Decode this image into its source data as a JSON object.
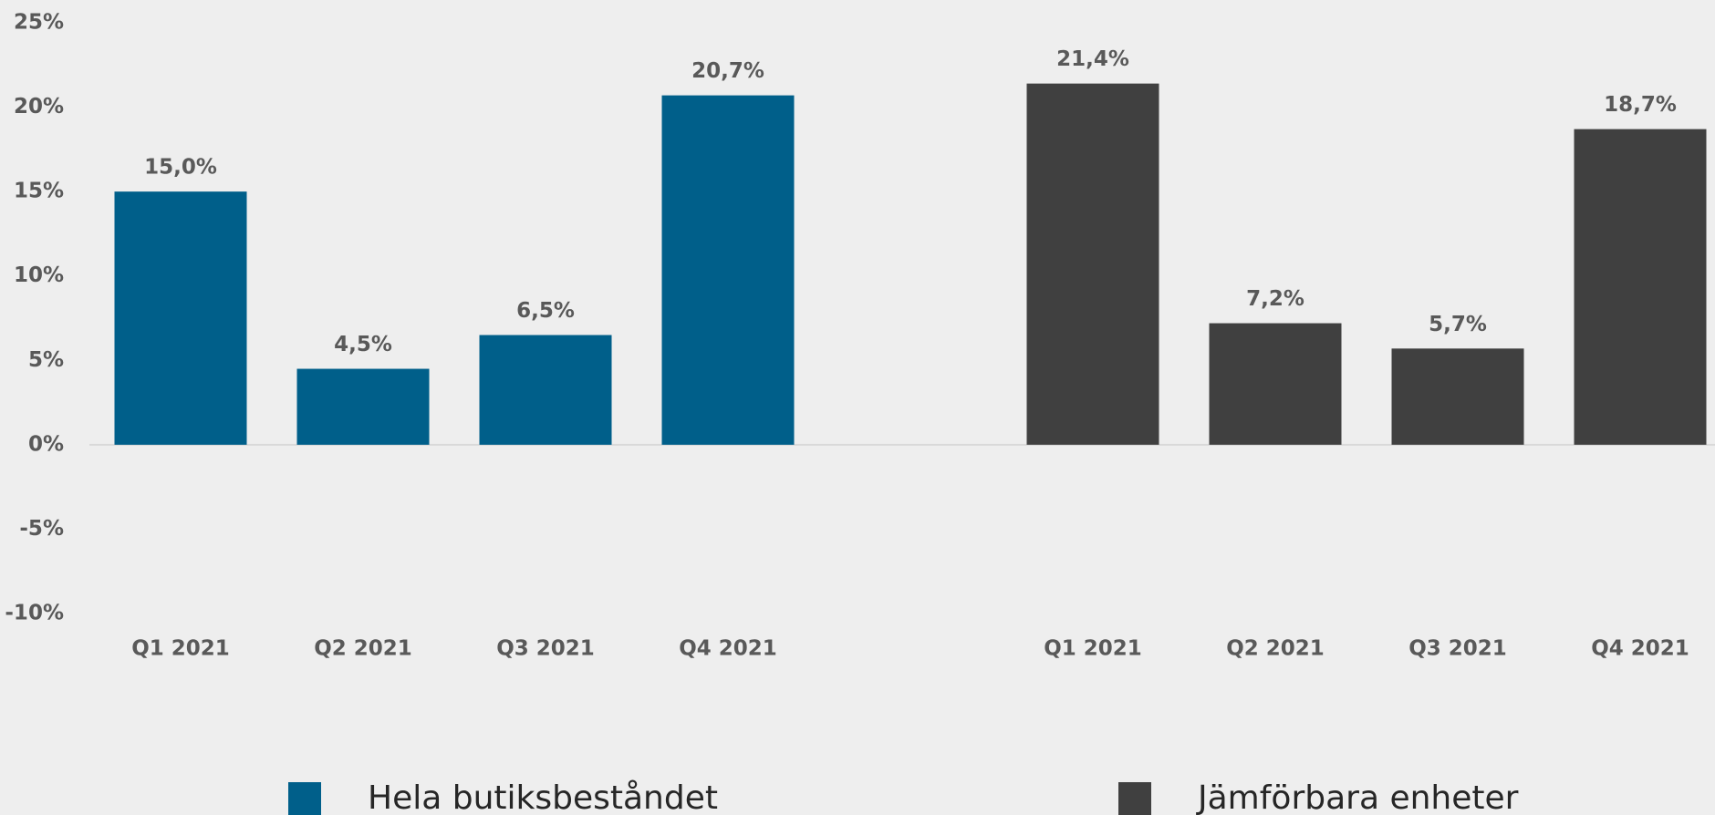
{
  "chart_data": {
    "type": "bar",
    "categories": [
      "Q1 2021",
      "Q2 2021",
      "Q3 2021",
      "Q4 2021",
      null,
      "Q1 2021",
      "Q2 2021",
      "Q3 2021",
      "Q4 2021"
    ],
    "series": [
      {
        "name": "Hela butiksbeståndet",
        "color": "#005f8a",
        "values": [
          15.0,
          4.5,
          6.5,
          20.7,
          null,
          null,
          null,
          null,
          null
        ],
        "value_labels": [
          "15,0%",
          "4,5%",
          "6,5%",
          "20,7%",
          null,
          null,
          null,
          null,
          null
        ]
      },
      {
        "name": "Jämförbara enheter",
        "color": "#404040",
        "values": [
          null,
          null,
          null,
          null,
          null,
          21.4,
          7.2,
          5.7,
          18.7
        ],
        "value_labels": [
          null,
          null,
          null,
          null,
          null,
          "21,4%",
          "7,2%",
          "5,7%",
          "18,7%"
        ]
      }
    ],
    "ylim": [
      -10,
      25
    ],
    "yticks": [
      {
        "value": -10,
        "label": "-10%"
      },
      {
        "value": -5,
        "label": "-5%"
      },
      {
        "value": 0,
        "label": "0%"
      },
      {
        "value": 5,
        "label": "5%"
      },
      {
        "value": 10,
        "label": "10%"
      },
      {
        "value": 15,
        "label": "15%"
      },
      {
        "value": 20,
        "label": "20%"
      },
      {
        "value": 25,
        "label": "25%"
      }
    ],
    "grid": false
  }
}
